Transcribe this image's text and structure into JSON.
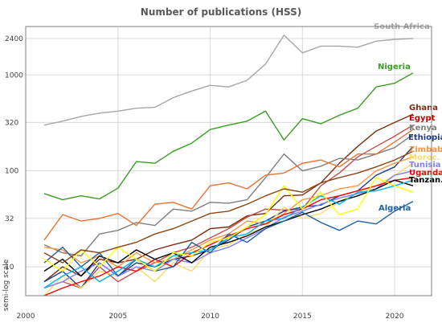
{
  "chart_data": {
    "type": "line",
    "title": "Number of publications (HSS)",
    "xlabel": "",
    "ylabel": "semi-log scale",
    "y_scale": "log",
    "xlim": [
      2000,
      2022
    ],
    "ylim": [
      5,
      3200
    ],
    "x_ticks": [
      2000,
      2005,
      2010,
      2015,
      2020
    ],
    "y_ticks": [
      10,
      32,
      100,
      320,
      1000,
      2400
    ],
    "grid": true,
    "legend": "labels at line ends",
    "x": [
      2001,
      2002,
      2003,
      2004,
      2005,
      2006,
      2007,
      2008,
      2009,
      2010,
      2011,
      2012,
      2013,
      2014,
      2015,
      2016,
      2017,
      2018,
      2019,
      2020,
      2021
    ],
    "series": [
      {
        "name": "South Africa",
        "color": "#a6a6a6",
        "values": [
          300,
          330,
          370,
          400,
          420,
          450,
          460,
          580,
          680,
          780,
          750,
          880,
          1300,
          2600,
          1700,
          2000,
          2000,
          1950,
          2250,
          2350,
          2400
        ]
      },
      {
        "name": "Nigeria",
        "color": "#3a9d23",
        "values": [
          58,
          50,
          55,
          51,
          66,
          125,
          120,
          160,
          195,
          270,
          300,
          330,
          420,
          210,
          350,
          310,
          380,
          450,
          750,
          820,
          1050
        ]
      },
      {
        "name": "Ghana",
        "color": "#7b2d12",
        "values": [
          7,
          10,
          8,
          12,
          11,
          12,
          15,
          17,
          19,
          25,
          26,
          34,
          36,
          55,
          56,
          75,
          120,
          180,
          260,
          320,
          390
        ]
      },
      {
        "name": "Egypt",
        "color": "#c0504d",
        "values": [
          6,
          7,
          6,
          10,
          7,
          9,
          11,
          14,
          16,
          20,
          25,
          33,
          40,
          39,
          40,
          70,
          95,
          140,
          180,
          230,
          300
        ]
      },
      {
        "name": "Kenya",
        "color": "#7f7f7f",
        "values": [
          17,
          14,
          13,
          22,
          24,
          29,
          27,
          40,
          38,
          47,
          46,
          50,
          85,
          150,
          100,
          112,
          135,
          130,
          150,
          175,
          240
        ]
      },
      {
        "name": "Ethiopia",
        "color": "#1f3c88",
        "values": [
          7,
          9,
          6,
          11,
          8,
          11,
          10,
          12,
          13,
          15,
          19,
          26,
          30,
          38,
          42,
          44,
          55,
          62,
          90,
          110,
          180
        ]
      },
      {
        "name": "Zimbab.",
        "color": "#f79646",
        "values": [
          16,
          15,
          11,
          13,
          10,
          14,
          11,
          12,
          15,
          19,
          22,
          30,
          28,
          36,
          50,
          55,
          65,
          70,
          100,
          120,
          140
        ]
      },
      {
        "name": "Moroc.",
        "color": "#ffd966",
        "values": [
          5,
          8,
          6,
          9,
          8,
          10,
          7,
          11,
          9,
          15,
          17,
          22,
          26,
          42,
          32,
          36,
          48,
          60,
          70,
          90,
          120
        ]
      },
      {
        "name": "Tunisia",
        "color": "#7f7fff",
        "values": [
          6,
          7,
          9,
          11,
          8,
          10,
          9,
          12,
          11,
          14,
          16,
          20,
          25,
          33,
          38,
          45,
          52,
          58,
          65,
          90,
          100
        ]
      },
      {
        "name": "Uganda",
        "color": "#ff0000",
        "values": [
          5,
          6,
          7,
          8,
          10,
          9,
          12,
          10,
          14,
          17,
          21,
          25,
          28,
          35,
          40,
          50,
          55,
          62,
          70,
          80,
          85
        ]
      },
      {
        "name": "Tanzan.",
        "color": "#000000",
        "values": [
          9,
          12,
          8,
          13,
          11,
          15,
          12,
          14,
          11,
          16,
          18,
          21,
          26,
          30,
          35,
          40,
          48,
          55,
          65,
          80,
          70
        ]
      },
      {
        "name": "Algeria",
        "color": "#1f5fa6",
        "values": [
          11,
          16,
          10,
          14,
          8,
          12,
          9,
          10,
          18,
          14,
          22,
          18,
          25,
          30,
          37,
          29,
          24,
          30,
          28,
          38,
          48
        ]
      },
      {
        "name": "",
        "color": "#00b0f0",
        "values": [
          6,
          8,
          10,
          7,
          9,
          12,
          10,
          13,
          14,
          15,
          20,
          22,
          30,
          32,
          42,
          55,
          45,
          60,
          62,
          70,
          80
        ]
      },
      {
        "name": "",
        "color": "#ffff00",
        "values": [
          12,
          9,
          15,
          10,
          16,
          12,
          9,
          14,
          13,
          18,
          20,
          26,
          35,
          70,
          40,
          60,
          35,
          40,
          85,
          70,
          60
        ]
      },
      {
        "name": "",
        "color": "#e97132",
        "values": [
          19,
          35,
          30,
          32,
          36,
          27,
          45,
          47,
          40,
          70,
          75,
          65,
          90,
          95,
          120,
          130,
          110,
          150,
          150,
          200,
          270
        ]
      },
      {
        "name": "",
        "color": "#8b4513",
        "values": [
          14,
          11,
          15,
          14,
          16,
          18,
          22,
          25,
          30,
          36,
          38,
          45,
          55,
          65,
          60,
          75,
          85,
          95,
          110,
          130,
          160
        ]
      }
    ]
  }
}
